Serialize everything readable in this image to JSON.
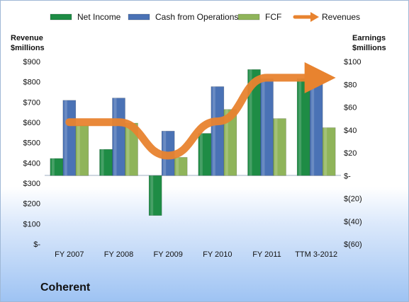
{
  "chart_data": {
    "type": "bar",
    "title": "Coherent",
    "categories": [
      "FY 2007",
      "FY 2008",
      "FY 2009",
      "FY 2010",
      "FY 2011",
      "TTM 3-2012"
    ],
    "left_axis": {
      "label_line1": "Revenue",
      "label_line2": "$millions",
      "ylim": [
        0,
        900
      ],
      "ticks": [
        0,
        100,
        200,
        300,
        400,
        500,
        600,
        700,
        800,
        900
      ],
      "tick_labels": [
        "$-",
        "$100",
        "$200",
        "$300",
        "$400",
        "$500",
        "$600",
        "$700",
        "$800",
        "$900"
      ]
    },
    "right_axis": {
      "label_line1": "Earnings",
      "label_line2": "$millions",
      "ylim": [
        -60,
        100
      ],
      "ticks": [
        -60,
        -40,
        -20,
        0,
        20,
        40,
        60,
        80,
        100
      ],
      "tick_labels": [
        "$(60)",
        "$(40)",
        "$(20)",
        "$-",
        "$20",
        "$40",
        "$60",
        "$80",
        "$100"
      ]
    },
    "series": [
      {
        "name": "Net Income",
        "axis": "right",
        "kind": "bar",
        "color": "#1e8c45",
        "values": [
          15,
          23,
          -35,
          37,
          93,
          85
        ]
      },
      {
        "name": "Cash from Operations",
        "axis": "right",
        "kind": "bar",
        "color": "#4a72b5",
        "values": [
          66,
          68,
          39,
          78,
          85,
          86
        ]
      },
      {
        "name": "FCF",
        "axis": "right",
        "kind": "bar",
        "color": "#8fb45a",
        "values": [
          44,
          46,
          16,
          58,
          50,
          42
        ]
      },
      {
        "name": "Revenues",
        "axis": "left",
        "kind": "line",
        "color": "#e8832f",
        "values": [
          601,
          601,
          436,
          605,
          820,
          820
        ]
      }
    ],
    "legend_position": "top",
    "grid": false
  }
}
